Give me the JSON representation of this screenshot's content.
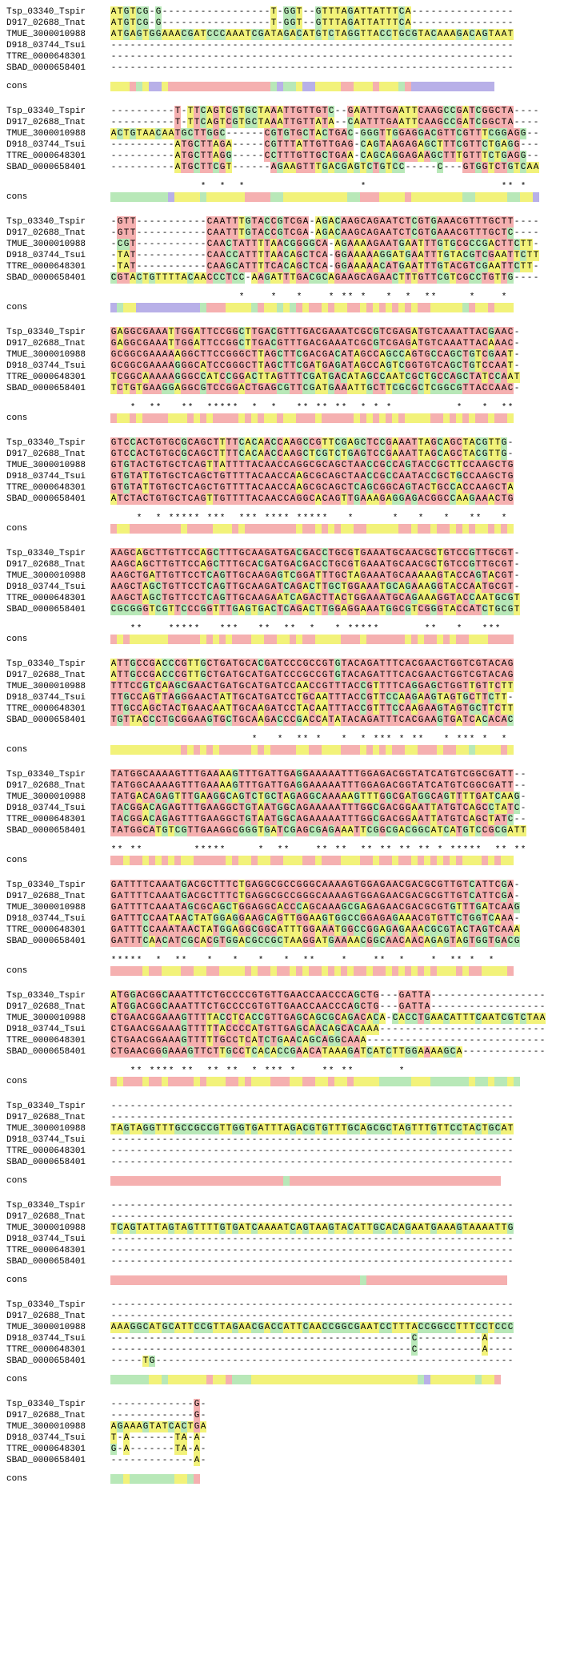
{
  "colors": {
    "A": "#f2f27a",
    "T": "#f2f27a",
    "G": "#b8e8b8",
    "C": "#b8e8b8",
    "gap": "#ffffff",
    "mismatch_red": "#f5b0b0",
    "cons_green": "#b8e8b8",
    "cons_yellow": "#f2f27a",
    "cons_red": "#f5b0b0",
    "cons_purple": "#b8b0e8",
    "cons_white": "#ffffff"
  },
  "labels": [
    "Tsp_03340_Tspir",
    "D917_02688_Tnat",
    "TMUE_3000010988",
    "D918_03744_Tsui",
    "TTRE_0000648301",
    "SBAD_0000658401"
  ],
  "cons_label": "cons",
  "blocks": [
    {
      "seqs": [
        "ATGTCG-G-----------------T-GGT--GTTTAGATTATTTCA-------------",
        "ATGTCG-G-----------------T-GGT--GTTTAGATTATTTCA-------------",
        "ATGAGTGGAAACGATCCCAAATCGATAGACATGTCTAGGTTACCTGCGTACAAAGACAGTAAT",
        "------------------------------------------------------------",
        "------------------------------------------------------------",
        "------------------------------------------------------------"
      ],
      "cons_colors": "yyyrgyppyrrrrrrrrrrrrrrrrgpggyppyyyyrryyyryyygrppppppppppppp",
      "cons_stars": ""
    },
    {
      "seqs": [
        "----------T-TTCAGTCGTGCTAAATTGTTGTC--GAATTTGAATTCAAGCCGATCGGCTA-",
        "----------T-TTCAGTCGTGCTAAATTGTTATA--CAATTTGAATTCAAGCCGATCGGCTA-",
        "ACTGTAACAATGCTTGGC------CGTGTGCTACTGAC-GGGTTGGAGGACGTTCGTTTCGGAGG-",
        "----------ATGCTTAGA-----CGTTTATTGTTGAG-CAGTAAGAGAGCTTTCGTTCTGAGG-",
        "----------ATGCTTAGG-----CCTTTGTTGCTGAA-CAGCAGGAGAAGCTTTGTTTCTGAGG-",
        "----------ATGCTTCGT------AGAAGTTTGACGAGTCTGTCC-----C---GTGGTCTGTCAA"
      ],
      "cons_colors": "gggggggggpyyyygyyyyyyrrrrggyyyyyyyyyyggrrryyyyryyyyyyyyggyyyyyggyyp",
      "cons_stars": "              *  *  *                  *                     ** *"
    },
    {
      "seqs": [
        "-GTT-----------CAATTTGTACCGTCGA-AGACAAGCAGAATCTCGTGAAACGTTTGCTT",
        "-GTT-----------CAATTTGTACCGTCGA-AGACAAGCAGAATCTCGTGAAACGTTTGCTC",
        "-CGT-----------CAACTATTTTAACGGGGCA-AGAAAAGAATGAATTTGTGCGCCGACTTCTT",
        "-TAT-----------CAACCATTTTAACAGCTCA-GGAAAAAGGATGAATTTGTACGTCGAATTCTT",
        "-TAT-----------CAAGCATTTTCACAGCTCA-GGAAAAACATGAATTTGTACGTCGAATTCTT",
        "CGTACTGTTTTACAACCCTCC-AAGATTTGACGCAGAAGCAGAACTTTGTTCGTCGCCTGTTG"
      ],
      "cons_colors": "pgyyppppppppppgrrryyyygryygygryrryryyrryryryryryrryyyyygryyryyy",
      "cons_stars": "                    *    *   *    * ** *   *  *  **     *    *"
    },
    {
      "seqs": [
        "GAGGCGAAATTGGATTCCGGCTTGACGTTTGACGAAATCGCGTCGAGATGTCAAATTACGAAC",
        "GAGGCGAAATTGGATTCCGGCTTGACGTTTGACGAAATCGCGTCGAGATGTCAAATTACAAAC",
        "GCGGCGAAAAAGGCTTCCGGGCTTAGCTTCGACGACATAGCCAGCCAGTGCCAGCTGTCGAAT",
        "GCGGCGAAAAGGGCATCCGGGCTTAGCTTCGATGAGATAGCCAGTCGGTGTCAGCTGTCCAAT",
        "TCGGCAAAAAGGGCCATCCGGACTTAGTTTCGATGACATAGCCAATCGCTGCCAGCTATCCAAT",
        "TCTGTGAAGGAGGCGTCCGGACTGAGCGTTCGATGAAATTGCTTCGCGCTCGGCGTTACCAAC"
      ],
      "cons_colors": "ryyryrrrryyyryryrrrryryryyryyrrryrrrrryryryryryyyyrryryryrryrry",
      "cons_stars": "   *  **   **  *****  *  *   ** ** **  * * *          *   *  **"
    },
    {
      "seqs": [
        "GTCCACTGTGCGCAGCTTTTCACAACCAAGCCGTTCGAGCTCCGAAATTAGCAGCTACGTTG",
        "GTCCACTGTGCGCAGCTTTTCACAACCAAGCTCGTCTGAGTCCGAAATTAGCAGCTACGTTG",
        "GTGTACTGTGCTCAGTTATTTTACAACCAGGCGCAGCTAACCGCCAGTACCGCTTCCAAGCTG",
        "GTGTATTGTGCTCAGCTGTTTTACAACCAAGCGCAGCTAACCGCCAATACCGCTGCCAAGCTG",
        "GTGTATTGTGCTCAGCTGTTTTACAACCAAGCGCAGCTCAGCGGCAGTACTGCCACCAAGCTA",
        "ATCTACTGTGCTCAGTTGTTTTACAACCAGGCACAGTTGAAAGAGGAGACGGCCAAGAAACTG"
      ],
      "cons_colors": "ryyrrrrrrrryrrrryyyryrrrrrrrryrryryryyrryyyyyrryrryrryryryyryry",
      "cons_stars": "    *  * ***** ***  *** **** *****   *      *   *   *   **   * "
    },
    {
      "seqs": [
        "AAGCAGCTTGTTCCAGCTTTGCAAGATGACGACCTGCGTGAAATGCAACGCTGTCCGTTGCGT",
        "AAGCAGCTTGTTCCAGCTTTGCACGATGACGACCTGCGTGAAATGCAACGCTGTCCGTTGCGT",
        "AAGCTGATTGTTCCTCAGTTGCAAGAGTCGGATTTGCTAGAAATGCAAAAAGTACCAGTACGT",
        "AAGCTAGCTGTTCCTCAGTTGCAAGATCAGACTTGCTGGAAATGCAGAAAGGTACCAATGCGT",
        "AAGCTAGCTGTTCCTCAGTTGCAAGAATCAGACTTACTGGAAATGCAGAAAGGTACCAATGCGT",
        "CGCGGGTCGTTCCCGGTTTGAGTGACTCAGACTTGGAGGAAATGGCGTCGGGTACCATCTGCGT"
      ],
      "cons_colors": "ryryyyyyyrrrrryryryrrryyrryyryrryyyyrrryrrrrrryryrryryrryyyrrrr",
      "cons_stars": "   **    *****   ***   **  **  *   * *****       **   *   ***"
    },
    {
      "seqs": [
        "ATTGCCGACCCGTTGCTGATGCACGATCCCGCCGTGTACAGATTTCACGAACTGGTCGTACAG",
        "ATTGCCGACCCGTTGCTGATGCATGATCCCGCCGTGTACAGATTTCACGAACTGGTCGTACAG",
        "TTTCCGTCAAGCGAACTGATGCATGATCCAACCGTTTACCGTTTTCAGGAGCTGGTTGTTCTT",
        "TTGCCAGTTAGGGAACTATTGCATGATCCTGCAATTTACCGTTCCAAGAAGTAGTGCTTCTT",
        "TTGCCAGCTACTGAACAATTGCAAGATCCTACAATTTACCGTTTCCAAGAAGTAGTGCTTCTT",
        "TGTTACCCTGCGGAAGTGCTGCAAGACCCGACCATATACAGATTTCACGAAGTGATCACACAC"
      ],
      "cons_colors": "yyyyyyyyyyyryryryrrrrryryrrrryyrryyyrrryryryrryyrrryrryygyyyyry",
      "cons_stars": "                      *   *  ** *   *  * *** * **   * *** *  *  "
    },
    {
      "seqs": [
        "TATGGCAAAAGTTTGAAAAGTTTGATTGAGGAAAAATTTGGAGACGGTATCATGTCGGCGATT",
        "TATGGCAAAAGTTTGAAAAGTTTGATTGAGGAAAAATTTGGAGACGGTATCATGTCGGCGATT",
        "TATGACAGAGTTTGAAGGCAGTCTGCTAGAGGCAAAAAGTTTGGCGATGGCAGTTTTGATCAAG",
        "TACGGACAGAGTTTGAAGGCTGTAATGGCAGAAAAATTTGGCGACGGAATTATGTCAGCCTATC",
        "TACGGACAGAGTTTGAAGGCTGTAATGGCAGAAAAATTTGGCGACGGAATTATGTCAGCTATC",
        "TATGGCATGTCGTTGAAGGCGGGTGATCGAGCGAGAAATTCGGCGACGGCATCATGTCCGCGATT"
      ],
      "cons_colors": "rryrryryryryyrrrrryryyryyrryyyrryrrryyyrryrryrryryryryryyyryryy",
      "cons_stars": "** **        *****     *  **    ** **  ** ** ** ** * *****  ** **"
    },
    {
      "seqs": [
        "GATTTTCAAATGACGCTTTCTGAGGCGCCGGGCAAAAGTGGAGAACGACGCGTTGTCATTCGA",
        "GATTTTCAAATGACGCTTTCTGAGGCGCCGGGCAAAAGTGGAGAACGACGCGTTGTCATTCGA",
        "GATTTTCAAATAGCGCAGCTGGAGGCACCCAGCAAAGCGAGAGAACGACGCGTGTTTGATCAAG",
        "GATTTCCAATAACTATGGAGGAAGCAGTTGGAAGTGGCCGGAGAGAAACGTGTTCTGGTCAAA",
        "GATTTCCAAATAACTATGGAGGCGGCATTTGGAAATGGCCGGAGAGAAACGCGTACTAGTCAAA",
        "GATTTCAACATCGCACGTGGACGCCGCTAAGGATGAAAACGGCAACAACAGAGTAGTGGTGACG"
      ],
      "cons_colors": "rrrrryrryyyrryyrryyyyryrryrryryrryryryrryrryryryryryyyryrryyyyr",
      "cons_stars": "*****  *  **   *   *   *   *  **    *    **  *    *  ** *  *  "
    },
    {
      "seqs": [
        "ATGGACGGCAAATTTCTGCCCCGTGTTGAACCAACCCAGCTG---GATTA--------------",
        "ATGGACGGCAAATTTCTGCCCCGTGTTGAACCAACCCAGCTG---GATTA--------------",
        "CTGAACGGAAAGTTTTACCTCACCGTTGAGCAGCGCAGACACA-CACCTGAACATTTCAATCGTCTAA",
        "CTGAACGGAAAGTTTTTACCCCATGTTGAGCAACAGCACAAA----------------------",
        "CTGAACGGAAAGTTTTTGCCTCATCTGAACAGCAGGCAAA----------------------",
        "CTGAACGGGAAAGTTCTTGCCTCACACCGAACATAAAGATCATCTTGGAAAAGCA---------"
      ],
      "cons_colors": "ryrrryrryrrrryryyyrryryyyrrryyrryyryyryyyygggggyyyggggggyggyggyg",
      "cons_stars": "   ** **** **  ** **  * *** *    ** **       *                    "
    },
    {
      "seqs": [
        "------------------------------------------------------------",
        "------------------------------------------------------------",
        "TAGTAGGTTTGCCGCCGTTGGTGATTTAGACGTGTTTGCAGCGCTAGTTTGTTCCTACTGCAT",
        "------------------------------------------------------------",
        "------------------------------------------------------------",
        "------------------------------------------------------------"
      ],
      "cons_colors": "rrrrrrrrrrrrrrrrrrrrrrrrrrrgrrrrrrrrrrrrrrrrrrrrrrrrrrrrrrrrr",
      "cons_stars": ""
    },
    {
      "seqs": [
        "------------------------------------------------------------",
        "------------------------------------------------------------",
        "TCAGTATTAGTAGTTTTGTGATCAAAATCAGTAAGTACATTGCACAGAATGAAAGTAAAATTG",
        "------------------------------------------------------------",
        "------------------------------------------------------------",
        "------------------------------------------------------------"
      ],
      "cons_colors": "rrrrrrrrrrrrrrrrrrrrrrrrrrrrrrrrrrrrrrrgrrrrrrrrrrrrrrrrrrrrrr",
      "cons_stars": ""
    },
    {
      "seqs": [
        "------------------------------------------------------------",
        "------------------------------------------------------------",
        "AAAGGCATGCATTCCGTTAGAACGACCATTCAACCGGCGAATCCTTTACCGGCCTTTCCTCCC",
        "-----------------------------------------------C----------A",
        "-----------------------------------------------C----------A",
        "-----TG-----------------------------------------------------"
      ],
      "cons_colors": "ggggggyygyyyyyyryyrgggyyyyyyyyyyyyyyyyyyyyyyyyyygpyyyyyyygyyr",
      "cons_stars": ""
    },
    {
      "seqs": [
        "-------------G",
        "-------------G",
        "AGAAAGTATCACTGA",
        "T-A-------TA-A",
        "G-A-------TA-A",
        "-------------A"
      ],
      "cons_colors": "ggygggggggyygr",
      "cons_stars": ""
    }
  ]
}
